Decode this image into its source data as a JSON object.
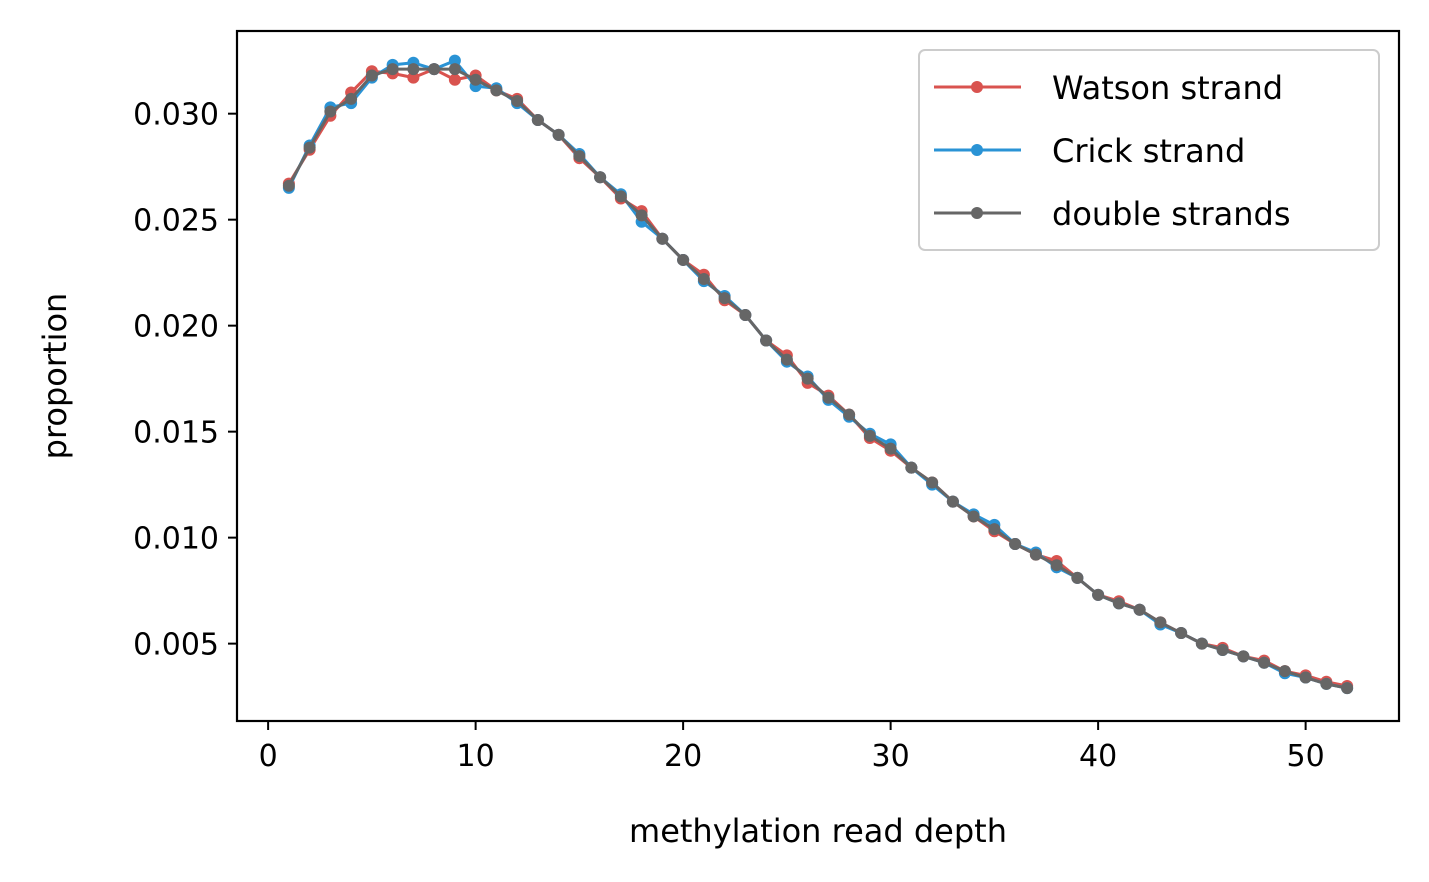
{
  "chart_data": {
    "type": "line",
    "title": "",
    "xlabel": "methylation read depth",
    "ylabel": "proportion",
    "xlim": [
      -1.5,
      54.5
    ],
    "ylim": [
      0.00135,
      0.0339
    ],
    "xticks": [
      0,
      10,
      20,
      30,
      40,
      50
    ],
    "xtick_labels": [
      "0",
      "10",
      "20",
      "30",
      "40",
      "50"
    ],
    "yticks": [
      0.005,
      0.01,
      0.015,
      0.02,
      0.025,
      0.03
    ],
    "ytick_labels": [
      "0.005",
      "0.010",
      "0.015",
      "0.020",
      "0.025",
      "0.030"
    ],
    "grid": false,
    "legend_position": "top-right",
    "x": [
      1,
      2,
      3,
      4,
      5,
      6,
      7,
      8,
      9,
      10,
      11,
      12,
      13,
      14,
      15,
      16,
      17,
      18,
      19,
      20,
      21,
      22,
      23,
      24,
      25,
      26,
      27,
      28,
      29,
      30,
      31,
      32,
      33,
      34,
      35,
      36,
      37,
      38,
      39,
      40,
      41,
      42,
      43,
      44,
      45,
      46,
      47,
      48,
      49,
      50,
      51,
      52
    ],
    "series": [
      {
        "name": "Watson strand",
        "color": "#d9534f",
        "values": [
          0.0267,
          0.0283,
          0.0299,
          0.031,
          0.032,
          0.0319,
          0.0317,
          0.0321,
          0.0316,
          0.0318,
          0.0311,
          0.0307,
          0.0297,
          0.029,
          0.0279,
          0.027,
          0.026,
          0.0254,
          0.0241,
          0.0231,
          0.0224,
          0.0212,
          0.0205,
          0.0193,
          0.0186,
          0.0173,
          0.0167,
          0.0158,
          0.0147,
          0.0141,
          0.0133,
          0.0126,
          0.0117,
          0.011,
          0.0103,
          0.0097,
          0.0092,
          0.0089,
          0.0081,
          0.0073,
          0.007,
          0.0066,
          0.006,
          0.0055,
          0.005,
          0.0048,
          0.0044,
          0.0042,
          0.0037,
          0.0035,
          0.0032,
          0.003
        ]
      },
      {
        "name": "Crick strand",
        "color": "#2a93d5",
        "values": [
          0.0265,
          0.0285,
          0.0303,
          0.0305,
          0.0317,
          0.0323,
          0.0324,
          0.0321,
          0.0325,
          0.0313,
          0.0312,
          0.0305,
          0.0297,
          0.029,
          0.0281,
          0.027,
          0.0262,
          0.0249,
          0.0241,
          0.0231,
          0.0221,
          0.0214,
          0.0205,
          0.0193,
          0.0183,
          0.0176,
          0.0165,
          0.0157,
          0.0149,
          0.0144,
          0.0133,
          0.0125,
          0.0117,
          0.0111,
          0.0106,
          0.0097,
          0.0093,
          0.0086,
          0.0081,
          0.0073,
          0.0069,
          0.0066,
          0.0059,
          0.0055,
          0.005,
          0.0047,
          0.0044,
          0.0041,
          0.0036,
          0.0034,
          0.0031,
          0.0029
        ]
      },
      {
        "name": "double strands",
        "color": "#666666",
        "values": [
          0.0266,
          0.0284,
          0.0301,
          0.0307,
          0.0318,
          0.0321,
          0.0321,
          0.0321,
          0.0321,
          0.0316,
          0.0311,
          0.0306,
          0.0297,
          0.029,
          0.028,
          0.027,
          0.0261,
          0.0252,
          0.0241,
          0.0231,
          0.0222,
          0.0213,
          0.0205,
          0.0193,
          0.0184,
          0.0175,
          0.0166,
          0.0158,
          0.0148,
          0.0142,
          0.0133,
          0.0126,
          0.0117,
          0.011,
          0.0104,
          0.0097,
          0.0092,
          0.0087,
          0.0081,
          0.0073,
          0.0069,
          0.0066,
          0.006,
          0.0055,
          0.005,
          0.0047,
          0.0044,
          0.0041,
          0.0037,
          0.0034,
          0.0031,
          0.0029
        ]
      }
    ]
  }
}
